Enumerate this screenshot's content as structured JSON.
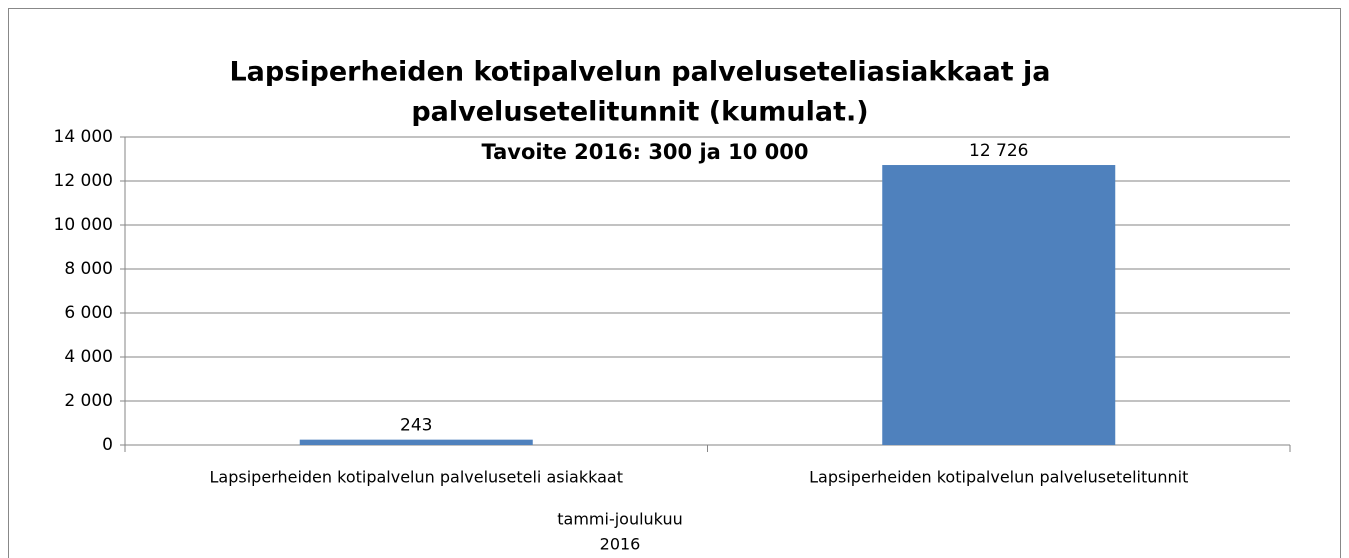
{
  "chart_data": {
    "type": "bar",
    "title": [
      "Lapsiperheiden kotipalvelun palveluseteliasiakkaat ja",
      "palvelusetelitunnit (kumulat.)"
    ],
    "annotation": "Tavoite 2016: 300 ja 10 000",
    "x_label": [
      "tammi-joulukuu",
      "2016"
    ],
    "categories": [
      "Lapsiperheiden kotipalvelun palveluseteli asiakkaat",
      "Lapsiperheiden kotipalvelun palvelusetelitunnit"
    ],
    "values": [
      243,
      12726
    ],
    "value_labels": [
      "243",
      "12 726"
    ],
    "color": "#4f81bd",
    "ylim": [
      0,
      14000
    ],
    "yticks": [
      0,
      {
        "value": 2000,
        "label": "2 000"
      },
      {
        "value": 4000,
        "label": "4 000"
      },
      {
        "value": 6000,
        "label": "6 000"
      },
      {
        "value": 8000,
        "label": "8 000"
      },
      {
        "value": 10000,
        "label": "10 000"
      },
      {
        "value": 12000,
        "label": "12 000"
      },
      {
        "value": 14000,
        "label": "14 000"
      }
    ],
    "grid": true
  }
}
